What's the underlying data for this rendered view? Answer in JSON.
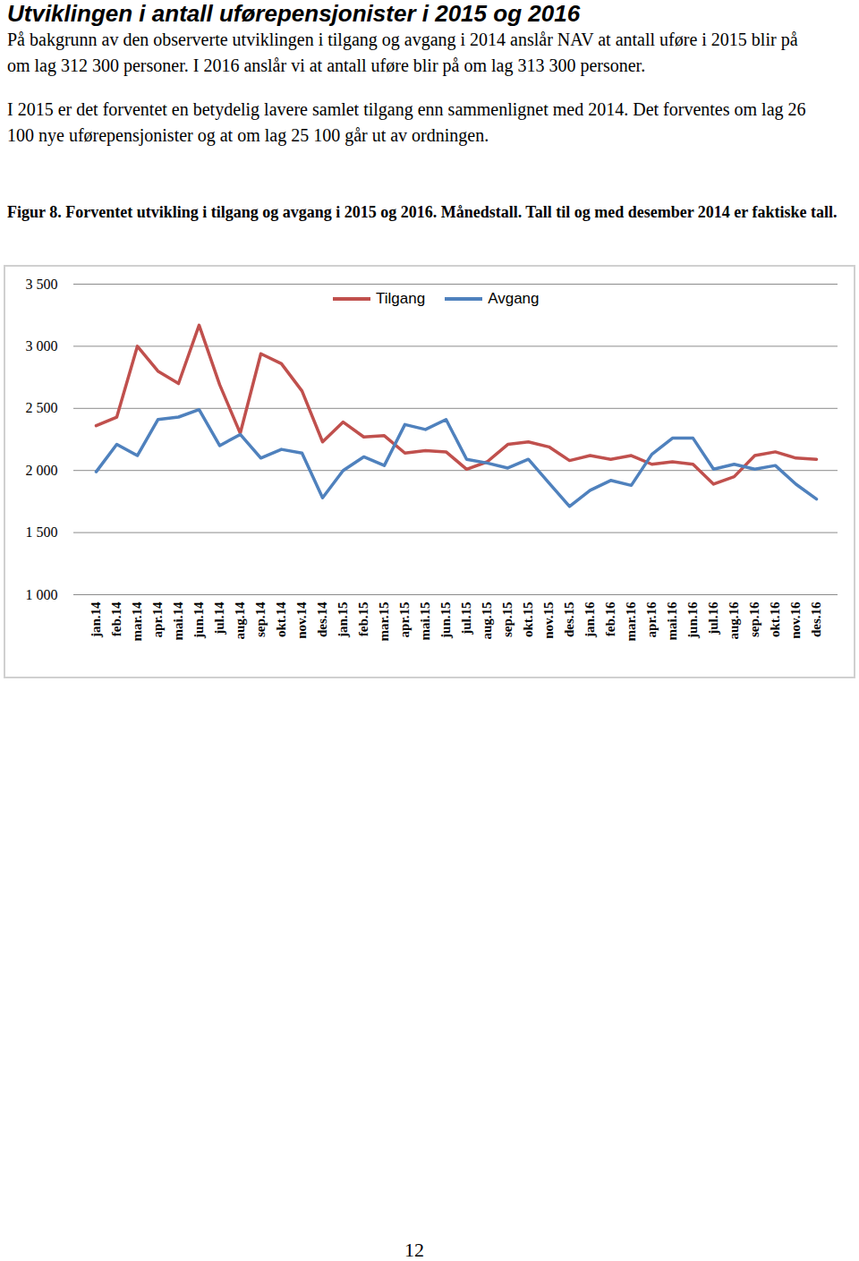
{
  "document": {
    "title": "Utviklingen i antall uførepensjonister  i 2015 og 2016",
    "paragraphs": [
      "På bakgrunn av den observerte utviklingen i tilgang og avgang i 2014 anslår NAV at antall uføre i 2015 blir på om lag 312 300 personer. I 2016 anslår vi at antall uføre blir på om lag 313 300 personer.",
      "I 2015 er det forventet en betydelig lavere samlet tilgang enn sammenlignet med 2014. Det forventes om lag 26 100 nye uførepensjonister og at om lag 25 100 går ut av ordningen."
    ],
    "figure_caption": "Figur 8. Forventet utvikling i tilgang og avgang i 2015 og 2016.  Månedstall. Tall til og med desember 2014 er faktiske tall.",
    "page_number": "12"
  },
  "chart_data": {
    "type": "line",
    "categories": [
      "jan.14",
      "feb.14",
      "mar.14",
      "apr.14",
      "mai.14",
      "jun.14",
      "jul.14",
      "aug.14",
      "sep.14",
      "okt.14",
      "nov.14",
      "des.14",
      "jan.15",
      "feb.15",
      "mar.15",
      "apr.15",
      "mai.15",
      "jun.15",
      "jul.15",
      "aug.15",
      "sep.15",
      "okt.15",
      "nov.15",
      "des.15",
      "jan.16",
      "feb.16",
      "mar.16",
      "apr.16",
      "mai.16",
      "jun.16",
      "jul.16",
      "aug.16",
      "sep.16",
      "okt.16",
      "nov.16",
      "des.16"
    ],
    "series": [
      {
        "name": "Tilgang",
        "color": "#c0504d",
        "values": [
          2360,
          2430,
          3000,
          2800,
          2700,
          3170,
          2690,
          2300,
          2940,
          2860,
          2640,
          2230,
          2390,
          2270,
          2280,
          2140,
          2160,
          2150,
          2010,
          2070,
          2210,
          2230,
          2190,
          2080,
          2120,
          2090,
          2120,
          2050,
          2070,
          2050,
          1890,
          1950,
          2120,
          2150,
          2100,
          2090
        ]
      },
      {
        "name": "Avgang",
        "color": "#4f81bd",
        "values": [
          1990,
          2210,
          2120,
          2410,
          2430,
          2490,
          2200,
          2290,
          2100,
          2170,
          2140,
          1780,
          2000,
          2110,
          2040,
          2370,
          2330,
          2410,
          2090,
          2060,
          2020,
          2090,
          1900,
          1710,
          1840,
          1920,
          1880,
          2130,
          2260,
          2260,
          2010,
          2050,
          2010,
          2040,
          1890,
          1770
        ]
      }
    ],
    "ylim": [
      1000,
      3500
    ],
    "yticks": [
      {
        "value": 1000,
        "label": "1 000"
      },
      {
        "value": 1500,
        "label": "1 500"
      },
      {
        "value": 2000,
        "label": "2 000"
      },
      {
        "value": 2500,
        "label": "2 500"
      },
      {
        "value": 3000,
        "label": "3 000"
      },
      {
        "value": 3500,
        "label": "3 500"
      }
    ],
    "grid": true,
    "legend": "top"
  }
}
